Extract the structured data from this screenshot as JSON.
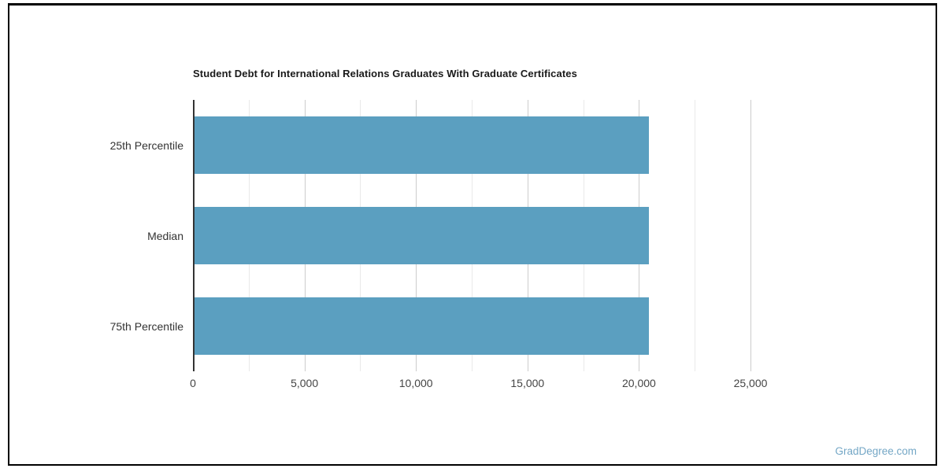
{
  "page": {
    "watermark": "GradDegree.com"
  },
  "colors": {
    "bar": "#5b9fc0",
    "axis_line": "#333333",
    "major_gridline": "#cccccc",
    "minor_gridline": "#e9e9e9",
    "title_text": "#1a1a1a",
    "tick_text": "#444444",
    "category_text": "#333333",
    "watermark_text": "#74a7c6",
    "card_border": "#000000"
  },
  "chart_data": {
    "type": "bar",
    "orientation": "horizontal",
    "title": "Student Debt for International Relations Graduates With Graduate Certificates",
    "categories": [
      "25th Percentile",
      "Median",
      "75th Percentile"
    ],
    "values": [
      20425,
      20425,
      20425
    ],
    "xlabel": "",
    "ylabel": "",
    "xlim": [
      0,
      25000
    ],
    "x_ticks": [
      0,
      5000,
      10000,
      15000,
      20000,
      25000
    ],
    "x_tick_labels": [
      "0",
      "5,000",
      "10,000",
      "15,000",
      "20,000",
      "25,000"
    ],
    "minor_tick_step": 2500,
    "grid": true,
    "legend": "none"
  }
}
